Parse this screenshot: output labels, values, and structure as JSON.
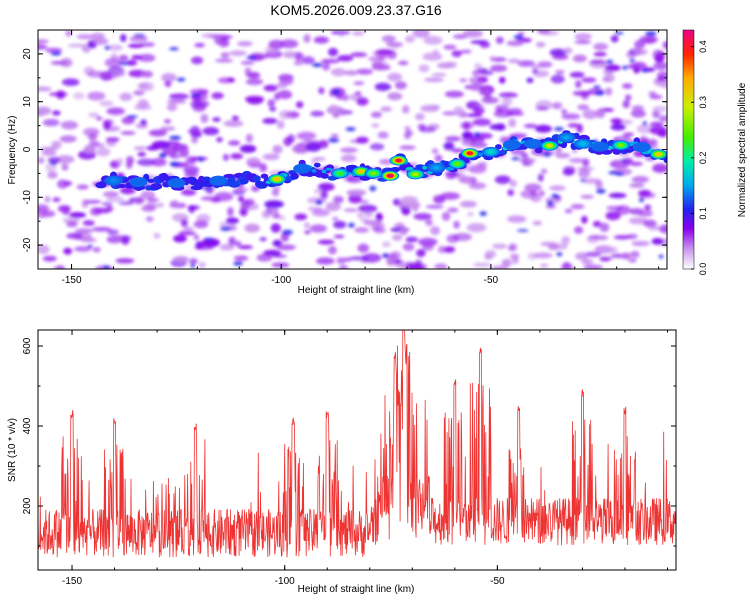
{
  "title": "KOM5.2026.009.23.37.G16",
  "chart_data": [
    {
      "type": "heatmap",
      "xlabel": "Height of straight line (km)",
      "ylabel": "Frequency (Hz)",
      "xlim": [
        -158,
        -8
      ],
      "ylim": [
        -25,
        25
      ],
      "xticks": [
        -150,
        -100,
        -50
      ],
      "yticks": [
        -20,
        -10,
        0,
        10,
        20
      ],
      "colorbar": {
        "label": "Normalized spectral amplitude",
        "range": [
          0,
          0.43
        ],
        "ticks": [
          "0.0",
          "0.1",
          "0.2",
          "0.3",
          "0.4"
        ],
        "colors": [
          "#ffffff",
          "#cc99ee",
          "#8800ee",
          "#2222ee",
          "#00aaee",
          "#00eeaa",
          "#44ee00",
          "#ccee00",
          "#ffaa00",
          "#ff2200",
          "#ee0088"
        ]
      },
      "ridge": [
        {
          "x": -140,
          "y": -6.5,
          "a": 0.14
        },
        {
          "x": -134,
          "y": -6.8,
          "a": 0.12
        },
        {
          "x": -125,
          "y": -7,
          "a": 0.05
        },
        {
          "x": -115,
          "y": -6.5,
          "a": 0.05
        },
        {
          "x": -101,
          "y": -6.2,
          "a": 0.33
        },
        {
          "x": -95,
          "y": -4.0,
          "a": 0.13
        },
        {
          "x": -86,
          "y": -5.0,
          "a": 0.23
        },
        {
          "x": -81,
          "y": -4.6,
          "a": 0.32
        },
        {
          "x": -78,
          "y": -5.0,
          "a": 0.26
        },
        {
          "x": -74,
          "y": -5.5,
          "a": 0.42
        },
        {
          "x": -72,
          "y": -2.3,
          "a": 0.4
        },
        {
          "x": -68,
          "y": -5.2,
          "a": 0.28
        },
        {
          "x": -63,
          "y": -3.8,
          "a": 0.15
        },
        {
          "x": -58,
          "y": -3.0,
          "a": 0.25
        },
        {
          "x": -55,
          "y": -0.8,
          "a": 0.4
        },
        {
          "x": -50,
          "y": -0.5,
          "a": 0.18
        },
        {
          "x": -45,
          "y": 1.0,
          "a": 0.1
        },
        {
          "x": -40,
          "y": 1.2,
          "a": 0.13
        },
        {
          "x": -36,
          "y": 0.8,
          "a": 0.3
        },
        {
          "x": -32,
          "y": 2.5,
          "a": 0.15
        },
        {
          "x": -28,
          "y": 1.2,
          "a": 0.16
        },
        {
          "x": -24,
          "y": 0.6,
          "a": 0.12
        },
        {
          "x": -19,
          "y": 0.9,
          "a": 0.26
        },
        {
          "x": -14,
          "y": 0.5,
          "a": 0.12
        },
        {
          "x": -10,
          "y": -1.0,
          "a": 0.32
        }
      ]
    },
    {
      "type": "line",
      "xlabel": "Height of straight line (km)",
      "ylabel": "SNR (10 * v/v)",
      "xlim": [
        -158,
        -8
      ],
      "ylim": [
        40,
        640
      ],
      "xticks": [
        -150,
        -100,
        -50
      ],
      "yticks": [
        200,
        400,
        600
      ],
      "series": [
        {
          "name": "SNR",
          "color": "#ee3333",
          "baseline": 120,
          "noise": 55,
          "peaks": [
            {
              "x": -72,
              "y": 640
            },
            {
              "x": -71.5,
              "y": 560
            },
            {
              "x": -74,
              "y": 520
            },
            {
              "x": -60,
              "y": 520
            },
            {
              "x": -54,
              "y": 600
            },
            {
              "x": -45,
              "y": 450
            },
            {
              "x": -30,
              "y": 490
            },
            {
              "x": -20,
              "y": 450
            },
            {
              "x": -90,
              "y": 440
            },
            {
              "x": -150,
              "y": 440
            },
            {
              "x": -140,
              "y": 420
            },
            {
              "x": -121,
              "y": 410
            },
            {
              "x": -98,
              "y": 420
            }
          ]
        }
      ]
    }
  ]
}
